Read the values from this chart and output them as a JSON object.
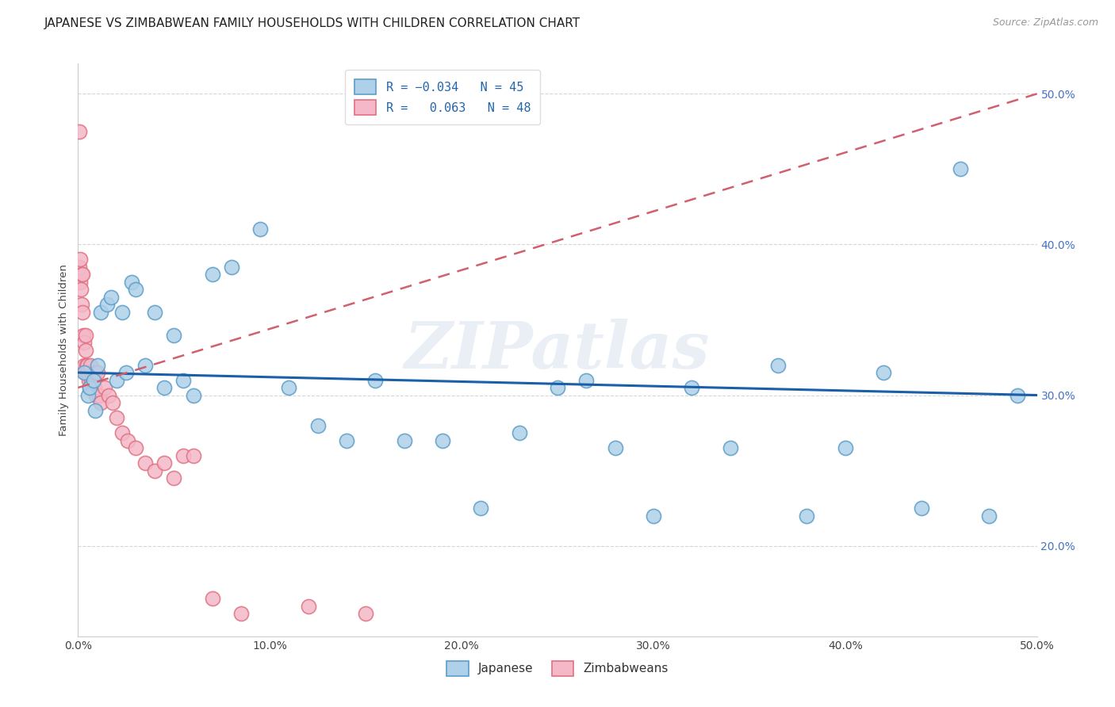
{
  "title": "JAPANESE VS ZIMBABWEAN FAMILY HOUSEHOLDS WITH CHILDREN CORRELATION CHART",
  "source": "Source: ZipAtlas.com",
  "ylabel": "Family Households with Children",
  "R_japanese": -0.034,
  "N_japanese": 45,
  "R_zimbabwean": 0.063,
  "N_zimbabwean": 48,
  "watermark": "ZIPatlas",
  "japanese_fill": "#aed0e8",
  "japanese_edge": "#5b9dc9",
  "zimbabwean_fill": "#f4b8c8",
  "zimbabwean_edge": "#e07080",
  "trend_japanese_color": "#1a5fa8",
  "trend_zimbabwean_color": "#d06070",
  "japanese_x": [
    0.3,
    0.5,
    0.6,
    0.8,
    0.9,
    1.0,
    1.2,
    1.5,
    1.7,
    2.0,
    2.3,
    2.5,
    2.8,
    3.0,
    3.5,
    4.0,
    4.5,
    5.0,
    5.5,
    6.0,
    7.0,
    8.0,
    9.5,
    11.0,
    12.5,
    14.0,
    15.5,
    17.0,
    19.0,
    21.0,
    23.0,
    25.0,
    26.5,
    28.0,
    30.0,
    32.0,
    34.0,
    36.5,
    38.0,
    40.0,
    42.0,
    44.0,
    46.0,
    47.5,
    49.0
  ],
  "japanese_y": [
    31.5,
    30.0,
    30.5,
    31.0,
    29.0,
    32.0,
    35.5,
    36.0,
    36.5,
    31.0,
    35.5,
    31.5,
    37.5,
    37.0,
    32.0,
    35.5,
    30.5,
    34.0,
    31.0,
    30.0,
    38.0,
    38.5,
    41.0,
    30.5,
    28.0,
    27.0,
    31.0,
    27.0,
    27.0,
    22.5,
    27.5,
    30.5,
    31.0,
    26.5,
    22.0,
    30.5,
    26.5,
    32.0,
    22.0,
    26.5,
    31.5,
    22.5,
    45.0,
    22.0,
    30.0
  ],
  "zimbabwean_x": [
    0.05,
    0.08,
    0.1,
    0.12,
    0.15,
    0.18,
    0.2,
    0.22,
    0.25,
    0.28,
    0.3,
    0.33,
    0.35,
    0.38,
    0.4,
    0.43,
    0.45,
    0.48,
    0.5,
    0.55,
    0.6,
    0.65,
    0.7,
    0.75,
    0.8,
    0.85,
    0.9,
    0.95,
    1.0,
    1.1,
    1.2,
    1.4,
    1.6,
    1.8,
    2.0,
    2.3,
    2.6,
    3.0,
    3.5,
    4.0,
    4.5,
    5.0,
    5.5,
    6.0,
    7.0,
    8.5,
    12.0,
    15.0
  ],
  "zimbabwean_y": [
    47.5,
    38.5,
    37.5,
    39.0,
    37.0,
    38.0,
    36.0,
    35.5,
    38.0,
    34.0,
    32.0,
    33.5,
    31.5,
    34.0,
    33.0,
    32.0,
    31.5,
    32.0,
    31.5,
    31.0,
    30.5,
    32.0,
    31.0,
    30.5,
    31.0,
    30.5,
    31.5,
    30.0,
    31.5,
    30.0,
    29.5,
    30.5,
    30.0,
    29.5,
    28.5,
    27.5,
    27.0,
    26.5,
    25.5,
    25.0,
    25.5,
    24.5,
    26.0,
    26.0,
    16.5,
    15.5,
    16.0,
    15.5
  ],
  "trend_jap_x0": 0.0,
  "trend_jap_y0": 31.5,
  "trend_jap_x1": 50.0,
  "trend_jap_y1": 30.0,
  "trend_zim_x0": 0.0,
  "trend_zim_y0": 30.5,
  "trend_zim_x1": 50.0,
  "trend_zim_y1": 50.0,
  "xlim": [
    0.0,
    50.0
  ],
  "ylim": [
    14.0,
    52.0
  ],
  "yticks": [
    20.0,
    30.0,
    40.0,
    50.0
  ],
  "xticks": [
    0.0,
    10.0,
    20.0,
    30.0,
    40.0,
    50.0
  ],
  "grid_color": "#cccccc",
  "background_color": "#ffffff",
  "title_fontsize": 11,
  "axis_label_fontsize": 9.5,
  "tick_fontsize": 10,
  "legend_fontsize": 11,
  "scatter_size": 170
}
